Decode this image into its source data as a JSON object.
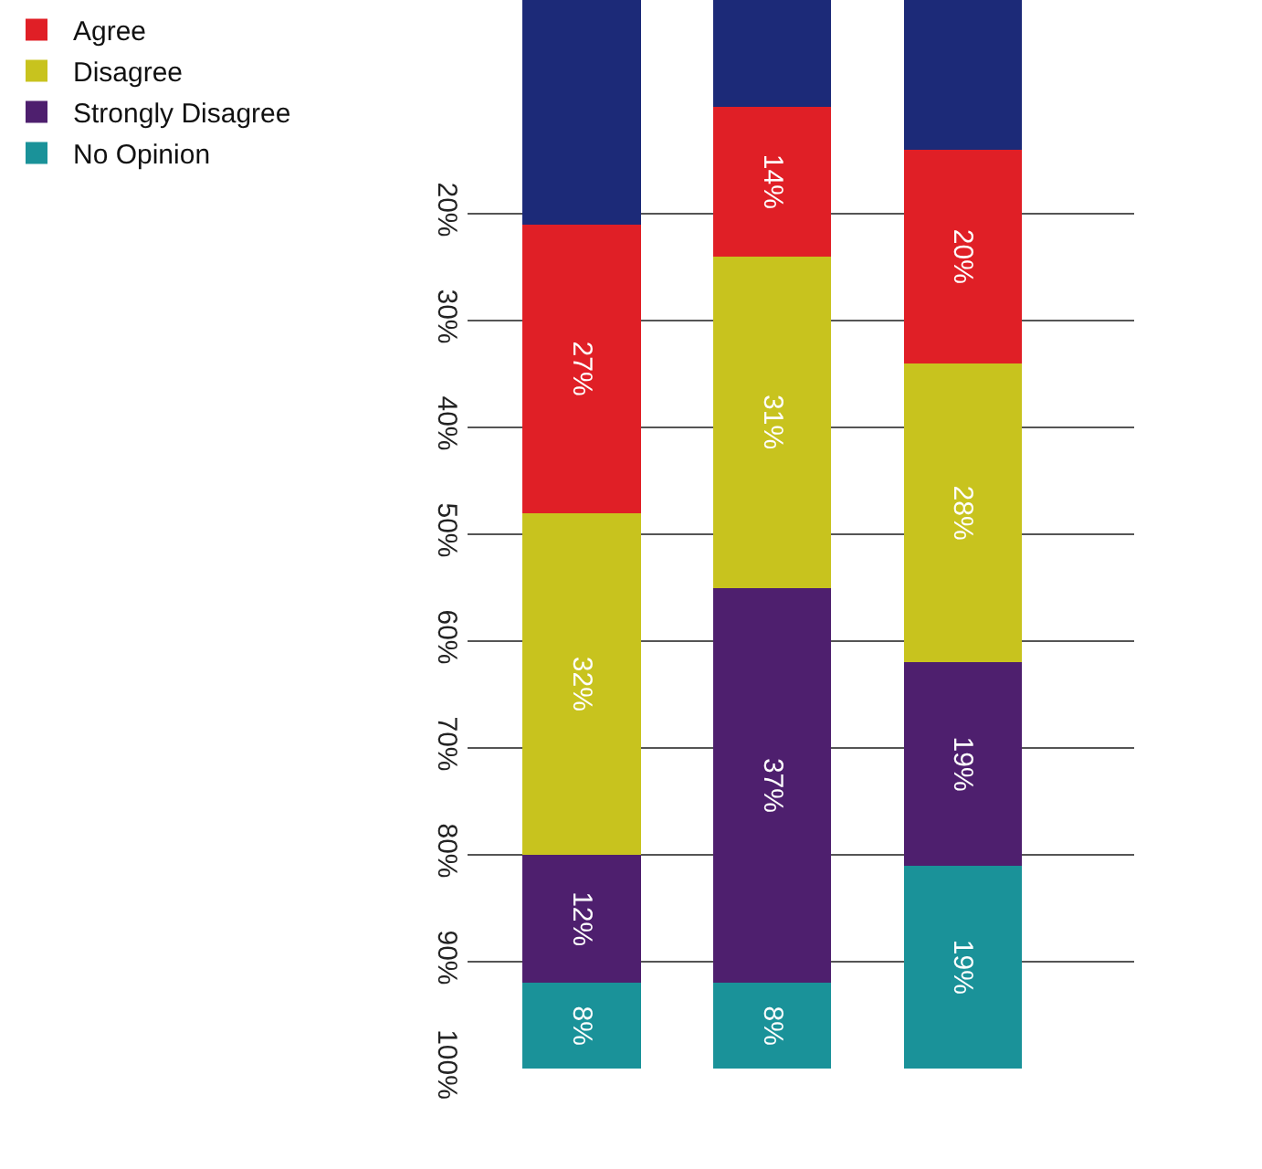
{
  "chart_data": {
    "type": "bar",
    "stacked": true,
    "categories": [
      null,
      null,
      null
    ],
    "series": [
      {
        "color": "#1c2a78",
        "values": [
          21,
          10,
          14
        ],
        "value_labels": [
          null,
          null,
          null
        ]
      },
      {
        "name": "Agree",
        "color": "#e01f26",
        "values": [
          27,
          14,
          20
        ],
        "value_labels": [
          "27%",
          "14%",
          "20%"
        ]
      },
      {
        "name": "Disagree",
        "color": "#c8c31e",
        "values": [
          32,
          31,
          28
        ],
        "value_labels": [
          "32%",
          "31%",
          "28%"
        ]
      },
      {
        "name": "Strongly Disagree",
        "color": "#4e1f6e",
        "values": [
          12,
          37,
          19
        ],
        "value_labels": [
          "12%",
          "37%",
          "19%"
        ]
      },
      {
        "name": "No Opinion",
        "color": "#1a9299",
        "values": [
          8,
          8,
          19
        ],
        "value_labels": [
          "8%",
          "8%",
          "19%"
        ]
      }
    ],
    "ylim": [
      100,
      0
    ],
    "yticks": [
      {
        "value": 20,
        "label": "20%"
      },
      {
        "value": 30,
        "label": "30%"
      },
      {
        "value": 40,
        "label": "40%"
      },
      {
        "value": 50,
        "label": "50%"
      },
      {
        "value": 60,
        "label": "60%"
      },
      {
        "value": 70,
        "label": "70%"
      },
      {
        "value": 80,
        "label": "80%"
      },
      {
        "value": 90,
        "label": "90%"
      },
      {
        "value": 100,
        "label": "100%"
      }
    ],
    "grid": "y",
    "legend": "left"
  }
}
